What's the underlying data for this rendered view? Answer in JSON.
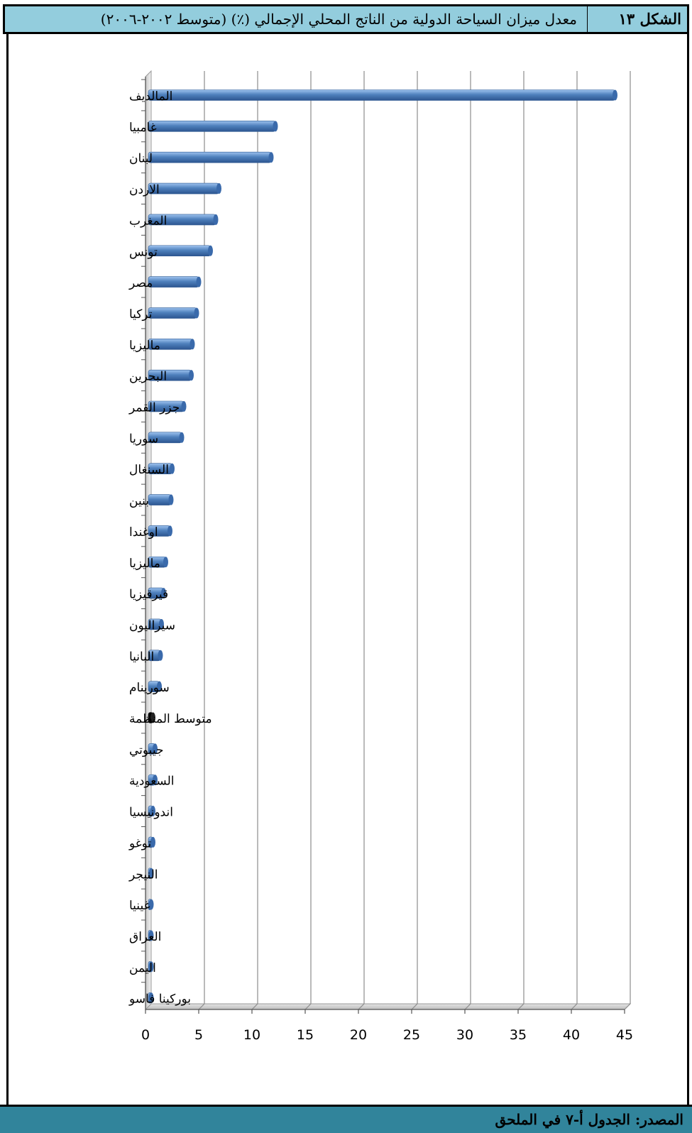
{
  "header": {
    "figure_label": "الشكل ١٣",
    "title": "معدل ميزان السياحة الدولية من الناتج المحلي الإجمالي (٪) (متوسط ٢٠٠٢-٢٠٠٦)"
  },
  "footer": {
    "source": "المصدر: الجدول أ-٧ في الملحق"
  },
  "colors": {
    "header_bg": "#93cddd",
    "footer_bg": "#31849b",
    "bar": "#4f81bd",
    "highlight_bar": "#000000"
  },
  "chart_data": {
    "type": "bar",
    "orientation": "horizontal",
    "title": "",
    "xlabel": "",
    "ylabel": "",
    "xlim": [
      0,
      45
    ],
    "x_ticks": [
      "0",
      "5",
      "10",
      "15",
      "20",
      "25",
      "30",
      "35",
      "40",
      "45"
    ],
    "grid": "vertical",
    "legend": "none",
    "highlight_category": "متوسط المنظمة",
    "categories": [
      "المالديف",
      "غامبيا",
      "لبنان",
      "الاردن",
      "المغرب",
      "تونس",
      "مصر",
      "تركيا",
      "ماليزيا",
      "البحرين",
      "جزر القمر",
      "سوريا",
      "السنغال",
      "بنين",
      "اوغندا",
      "ماليزيا",
      "قيرقيزيا",
      "سيراليون",
      "البانيا",
      "سورينام",
      "متوسط المنظمة",
      "جيبوتي",
      "السعودية",
      "اندونيسيا",
      "توغو",
      "النيجر",
      "غينيا",
      "العراق",
      "اليمن",
      "بوركينا فاسو"
    ],
    "values": [
      44.1,
      12.2,
      11.8,
      6.9,
      6.6,
      6.1,
      5.0,
      4.8,
      4.4,
      4.3,
      3.6,
      3.4,
      2.5,
      2.4,
      2.3,
      1.9,
      1.7,
      1.5,
      1.4,
      1.3,
      0.7,
      0.9,
      0.9,
      0.7,
      0.7,
      0.5,
      0.5,
      0.4,
      0.4,
      0.4
    ]
  }
}
